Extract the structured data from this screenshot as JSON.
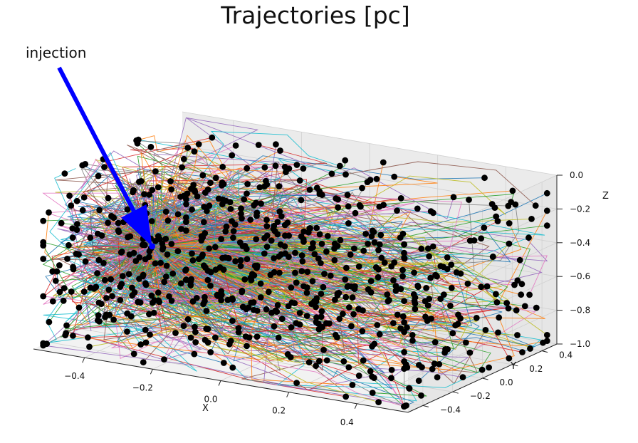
{
  "chart_data": {
    "type": "3d-line-scatter",
    "title": "Trajectories [pc]",
    "xlabel": "X",
    "ylabel": "Y",
    "zlabel": "Z",
    "xlim": [
      -0.55,
      0.55
    ],
    "ylim": [
      -0.5,
      0.5
    ],
    "zlim": [
      -1.0,
      0.0
    ],
    "x_ticks": [
      "−0.4",
      "−0.2",
      "0.0",
      "0.2",
      "0.4"
    ],
    "y_ticks": [
      "−0.4",
      "−0.2",
      "0.0",
      "0.2",
      "0.4"
    ],
    "z_ticks": [
      "0.0",
      "−0.2",
      "−0.4",
      "−0.6",
      "−0.8",
      "−1.0"
    ],
    "injection_point": {
      "x": -0.42,
      "y": 0.0,
      "z": -0.55
    },
    "annotation": "injection",
    "n_trajectories": 700,
    "endpoint_color": "#000000",
    "injection_color": "#0000ff",
    "arrow_color": "#0000ff",
    "series_colors": [
      "#1f77b4",
      "#ff7f0e",
      "#2ca02c",
      "#d62728",
      "#9467bd",
      "#8c564b",
      "#e377c2",
      "#7f7f7f",
      "#bcbd22",
      "#17becf"
    ],
    "grid": true
  }
}
